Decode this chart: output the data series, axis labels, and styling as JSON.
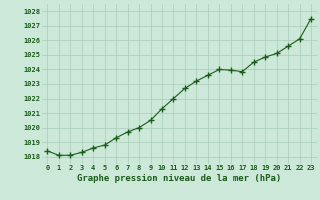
{
  "hours": [
    0,
    1,
    2,
    3,
    4,
    5,
    6,
    7,
    8,
    9,
    10,
    11,
    12,
    13,
    14,
    15,
    16,
    17,
    18,
    19,
    20,
    21,
    22,
    23
  ],
  "pressure": [
    1018.4,
    1018.1,
    1018.1,
    1018.3,
    1018.6,
    1018.8,
    1019.3,
    1019.7,
    1020.0,
    1020.5,
    1021.3,
    1022.0,
    1022.7,
    1023.2,
    1023.6,
    1024.0,
    1023.95,
    1023.85,
    1024.5,
    1024.85,
    1025.1,
    1025.6,
    1026.1,
    1027.5
  ],
  "background_color": "#cce8d8",
  "grid_color": "#aaccbb",
  "line_color": "#1a5c1a",
  "marker_color": "#1a5c1a",
  "xlabel": "Graphe pression niveau de la mer (hPa)",
  "ylim": [
    1017.5,
    1028.5
  ],
  "xlim": [
    -0.5,
    23.5
  ],
  "yticks": [
    1018,
    1019,
    1020,
    1021,
    1022,
    1023,
    1024,
    1025,
    1026,
    1027,
    1028
  ],
  "xticks": [
    0,
    1,
    2,
    3,
    4,
    5,
    6,
    7,
    8,
    9,
    10,
    11,
    12,
    13,
    14,
    15,
    16,
    17,
    18,
    19,
    20,
    21,
    22,
    23
  ],
  "xtick_labels": [
    "0",
    "1",
    "2",
    "3",
    "4",
    "5",
    "6",
    "7",
    "8",
    "9",
    "10",
    "11",
    "12",
    "13",
    "14",
    "15",
    "16",
    "17",
    "18",
    "19",
    "20",
    "21",
    "22",
    "23"
  ]
}
